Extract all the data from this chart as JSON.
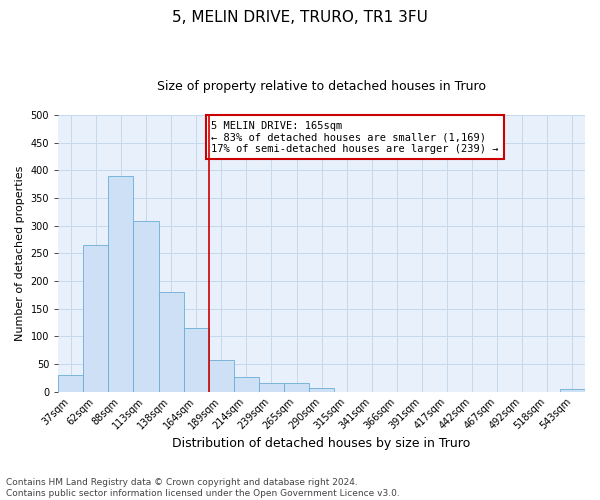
{
  "title": "5, MELIN DRIVE, TRURO, TR1 3FU",
  "subtitle": "Size of property relative to detached houses in Truro",
  "xlabel": "Distribution of detached houses by size in Truro",
  "ylabel": "Number of detached properties",
  "bar_labels": [
    "37sqm",
    "62sqm",
    "88sqm",
    "113sqm",
    "138sqm",
    "164sqm",
    "189sqm",
    "214sqm",
    "239sqm",
    "265sqm",
    "290sqm",
    "315sqm",
    "341sqm",
    "366sqm",
    "391sqm",
    "417sqm",
    "442sqm",
    "467sqm",
    "492sqm",
    "518sqm",
    "543sqm"
  ],
  "bar_values": [
    30,
    265,
    390,
    308,
    180,
    115,
    58,
    27,
    16,
    16,
    6,
    0,
    0,
    0,
    0,
    0,
    0,
    0,
    0,
    0,
    5
  ],
  "bar_color": "#cde0f5",
  "bar_edge_color": "#6aaed6",
  "grid_color": "#c5d8ec",
  "background_color": "#e8f1fb",
  "vline_color": "#cc0000",
  "annotation_text": "5 MELIN DRIVE: 165sqm\n← 83% of detached houses are smaller (1,169)\n17% of semi-detached houses are larger (239) →",
  "annotation_box_color": "#ffffff",
  "annotation_box_edge": "#cc0000",
  "ylim": [
    0,
    500
  ],
  "yticks": [
    0,
    50,
    100,
    150,
    200,
    250,
    300,
    350,
    400,
    450,
    500
  ],
  "footer": "Contains HM Land Registry data © Crown copyright and database right 2024.\nContains public sector information licensed under the Open Government Licence v3.0.",
  "title_fontsize": 11,
  "subtitle_fontsize": 9,
  "xlabel_fontsize": 9,
  "ylabel_fontsize": 8,
  "tick_fontsize": 7,
  "annotation_fontsize": 7.5,
  "footer_fontsize": 6.5
}
